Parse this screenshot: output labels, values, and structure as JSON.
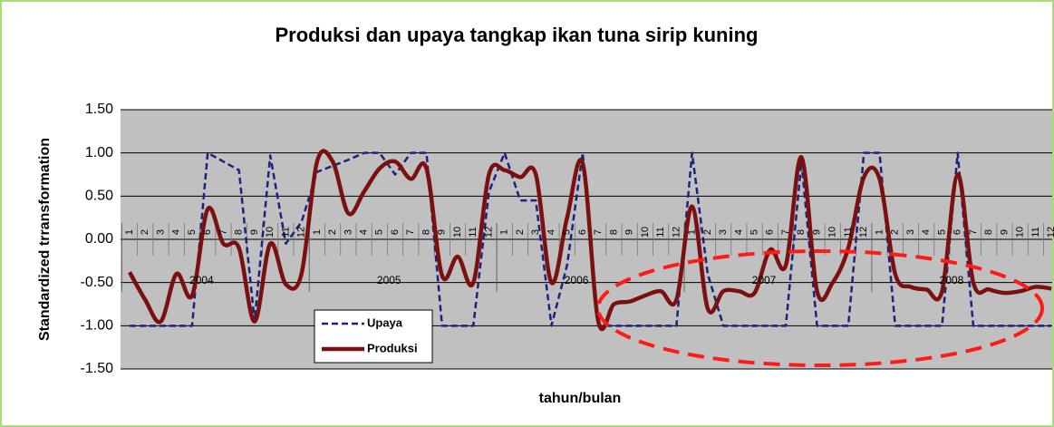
{
  "chart_data": {
    "type": "line",
    "title": "Produksi dan upaya tangkap ikan tuna sirip kuning",
    "y_label": "Standardized trransformation",
    "x_label": "tahun/bulan",
    "categories": [
      "1",
      "2",
      "3",
      "4",
      "5",
      "6",
      "7",
      "8",
      "9",
      "10",
      "11",
      "12",
      "1",
      "2",
      "3",
      "4",
      "5",
      "6",
      "7",
      "8",
      "9",
      "10",
      "11",
      "12",
      "1",
      "2",
      "3",
      "4",
      "5",
      "6",
      "7",
      "8",
      "9",
      "10",
      "11",
      "12",
      "1",
      "2",
      "3",
      "4",
      "5",
      "6",
      "7",
      "8",
      "9",
      "10",
      "11",
      "12",
      "1",
      "2",
      "3",
      "4",
      "5",
      "6",
      "7",
      "8",
      "9",
      "10",
      "11",
      "12"
    ],
    "years": [
      "2004",
      "2005",
      "2006",
      "2007",
      "2008"
    ],
    "ylim": [
      -1.5,
      1.5
    ],
    "yticks": [
      {
        "value": 1.5,
        "label": "1.50"
      },
      {
        "value": 1,
        "label": "1.00"
      },
      {
        "value": 0.5,
        "label": "0.50"
      },
      {
        "value": 0,
        "label": "0.00"
      },
      {
        "value": -0.5,
        "label": "-0.50"
      },
      {
        "value": -1,
        "label": "-1.00"
      },
      {
        "value": -1.5,
        "label": "-1.50"
      }
    ],
    "grid": true,
    "series": [
      {
        "name": "Upaya",
        "color": "#1a237e",
        "dashed": true,
        "smooth": false,
        "values": [
          -1,
          -1,
          -1,
          -1,
          -1,
          1,
          0.9,
          0.8,
          -0.95,
          0.97,
          -0.05,
          0.2,
          0.78,
          0.85,
          0.92,
          1,
          1,
          0.75,
          1,
          1,
          -1,
          -1,
          -1,
          0.55,
          1,
          0.45,
          0.45,
          -1,
          -0.3,
          1,
          -1,
          -1,
          -1,
          -1,
          -1,
          -1,
          1,
          -0.4,
          -1,
          -1,
          -1,
          -1,
          -1,
          0.9,
          -1,
          -1,
          -1,
          1,
          1,
          -1,
          -1,
          -1,
          -1,
          1,
          -1,
          -1,
          -1,
          -1,
          -1,
          -1
        ]
      },
      {
        "name": "Produksi",
        "color": "#7b1010",
        "dashed": false,
        "smooth": true,
        "values": [
          -0.38,
          -0.7,
          -0.95,
          -0.4,
          -0.65,
          0.35,
          -0.05,
          -0.1,
          -0.95,
          -0.05,
          -0.52,
          -0.4,
          0.9,
          0.9,
          0.3,
          0.55,
          0.82,
          0.9,
          0.7,
          0.82,
          -0.42,
          -0.2,
          -0.5,
          0.75,
          0.8,
          0.72,
          0.75,
          -0.5,
          0.25,
          0.88,
          -0.95,
          -0.75,
          -0.72,
          -0.65,
          -0.6,
          -0.7,
          0.38,
          -0.8,
          -0.6,
          -0.6,
          -0.62,
          -0.12,
          -0.3,
          0.95,
          -0.6,
          -0.5,
          -0.1,
          0.72,
          0.7,
          -0.4,
          -0.55,
          -0.58,
          -0.6,
          0.75,
          -0.5,
          -0.58,
          -0.62,
          -0.6,
          -0.55,
          -0.57
        ]
      }
    ]
  }
}
